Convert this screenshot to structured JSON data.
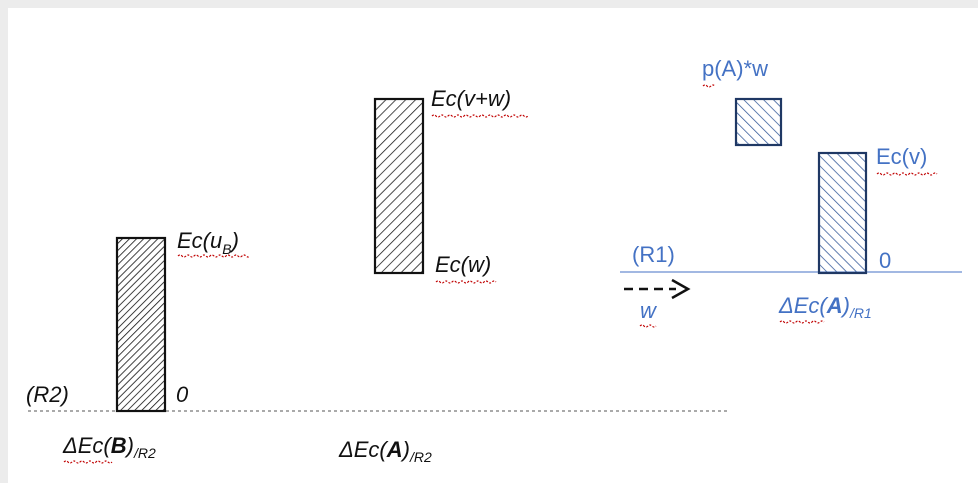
{
  "labels": {
    "ec_ub_main": "Ec(u",
    "ec_ub_sub": "B",
    "ec_ub_close": ")",
    "zero_left": "0",
    "r2": "(R2)",
    "delta_b_prefix": "ΔEc(",
    "delta_b_bold": "B",
    "delta_b_close": ")",
    "delta_b_sub": "/R2",
    "ec_vw": "Ec(v+w)",
    "ec_w": "Ec(w)",
    "delta_a2_prefix": "ΔEc(",
    "delta_a2_bold": "A",
    "delta_a2_close": ")",
    "delta_a2_sub": "/R2",
    "paw": "p(A)*w",
    "ec_v": "Ec(v)",
    "r1": "(R1)",
    "zero_right": "0",
    "w_arrow": "w",
    "delta_a1_prefix": "ΔEc(",
    "delta_a1_bold": "A",
    "delta_a1_close": ")",
    "delta_a1_sub": "/R1"
  },
  "colors": {
    "black": "#111111",
    "blue": "#4472c4",
    "dark_blue": "#1f3864",
    "spell_underline": "#c00000"
  }
}
